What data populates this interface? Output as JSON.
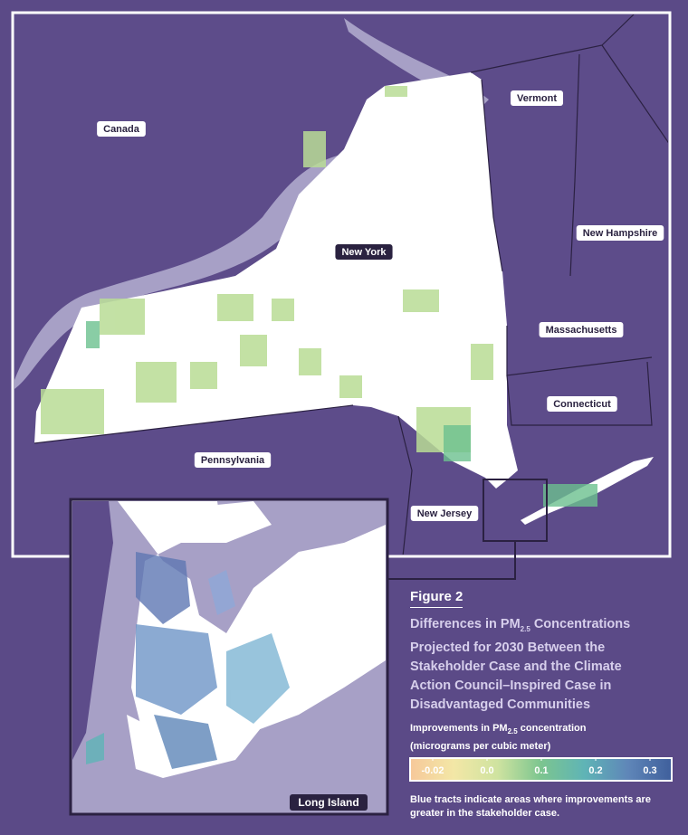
{
  "map_labels": [
    "Canada",
    "Vermont",
    "New Hampshire",
    "Massachusetts",
    "Connecticut",
    "Pennsylvania",
    "New Jersey"
  ],
  "state_label": "New York",
  "inset_label": "Long Island",
  "figure": {
    "number": "Figure 2",
    "title": [
      "Differences in PM",
      "2.5",
      " Concentrations Projected for 2030 Between the Stakeholder Case and the Climate Action Council–Inspired Case in Disadvantaged Communities"
    ]
  },
  "legend": {
    "title": [
      "Improvements in PM",
      "2.5",
      " concentration"
    ],
    "subtitle": "(micrograms per cubic meter)",
    "ticks": [
      -0.02,
      {
        "value": 0,
        "label": "0.0"
      },
      0.1,
      0.2,
      0.3
    ],
    "colors": [
      "#f6c89a",
      "#f3e7a6",
      "#cfe3a0",
      "#7cc58f",
      "#5fb4b6",
      "#5f86b8",
      "#3f5f9c"
    ],
    "note": "Blue tracts indicate areas where improvements are greater in the stakeholder case."
  }
}
